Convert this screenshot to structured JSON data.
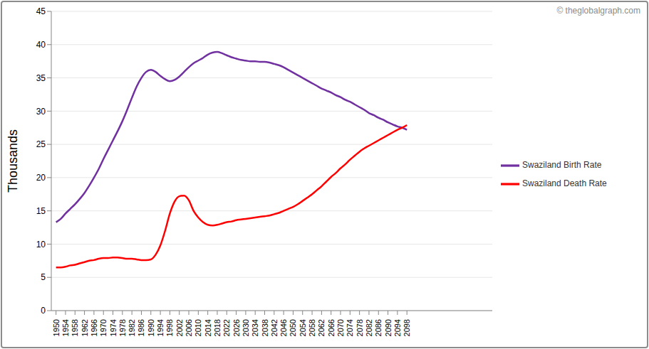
{
  "chart_data": {
    "type": "line",
    "y_label": "Thousands",
    "annotations": [
      "© theglobalgraph.com"
    ],
    "x": [
      1950,
      1952,
      1954,
      1956,
      1958,
      1960,
      1962,
      1964,
      1966,
      1968,
      1970,
      1972,
      1974,
      1976,
      1978,
      1980,
      1982,
      1984,
      1986,
      1988,
      1990,
      1992,
      1994,
      1996,
      1998,
      2000,
      2002,
      2004,
      2006,
      2008,
      2010,
      2012,
      2014,
      2016,
      2018,
      2020,
      2022,
      2024,
      2026,
      2028,
      2030,
      2032,
      2034,
      2036,
      2038,
      2040,
      2042,
      2044,
      2046,
      2048,
      2050,
      2052,
      2054,
      2056,
      2058,
      2060,
      2062,
      2064,
      2066,
      2068,
      2070,
      2072,
      2074,
      2076,
      2078,
      2080,
      2082,
      2084,
      2086,
      2088,
      2090,
      2092,
      2094,
      2096,
      2098
    ],
    "series": [
      {
        "name": "Swaziland Birth Rate",
        "color": "#7030a0",
        "values": [
          13.3,
          13.8,
          14.6,
          15.3,
          16.0,
          16.8,
          17.7,
          18.8,
          20.0,
          21.3,
          22.8,
          24.2,
          25.6,
          27.0,
          28.5,
          30.2,
          32.0,
          33.7,
          35.0,
          35.9,
          36.2,
          35.9,
          35.3,
          34.8,
          34.5,
          34.7,
          35.2,
          35.9,
          36.6,
          37.2,
          37.6,
          38.0,
          38.5,
          38.8,
          38.9,
          38.7,
          38.4,
          38.1,
          37.9,
          37.7,
          37.6,
          37.5,
          37.5,
          37.4,
          37.4,
          37.3,
          37.1,
          36.9,
          36.6,
          36.2,
          35.8,
          35.4,
          35.0,
          34.6,
          34.2,
          33.8,
          33.4,
          33.1,
          32.8,
          32.4,
          32.1,
          31.7,
          31.4,
          31.0,
          30.6,
          30.2,
          29.7,
          29.4,
          29.0,
          28.7,
          28.3,
          28.0,
          27.7,
          27.5,
          27.2
        ]
      },
      {
        "name": "Swaziland Death Rate",
        "color": "#ff0000",
        "values": [
          6.5,
          6.5,
          6.6,
          6.8,
          6.9,
          7.1,
          7.3,
          7.5,
          7.6,
          7.8,
          7.9,
          7.9,
          8.0,
          8.0,
          7.9,
          7.8,
          7.8,
          7.7,
          7.6,
          7.6,
          7.7,
          8.4,
          9.8,
          12.0,
          14.6,
          16.4,
          17.2,
          17.3,
          16.6,
          15.0,
          14.0,
          13.3,
          12.9,
          12.8,
          12.9,
          13.1,
          13.3,
          13.4,
          13.6,
          13.7,
          13.8,
          13.9,
          14.0,
          14.1,
          14.2,
          14.3,
          14.5,
          14.7,
          15.0,
          15.3,
          15.6,
          16.0,
          16.5,
          17.0,
          17.5,
          18.1,
          18.7,
          19.4,
          20.1,
          20.7,
          21.4,
          22.0,
          22.7,
          23.3,
          23.9,
          24.4,
          24.8,
          25.2,
          25.6,
          26.0,
          26.4,
          26.8,
          27.2,
          27.5,
          27.9
        ]
      }
    ],
    "xlim": [
      1948,
      2134
    ],
    "xticks": [
      1950,
      1954,
      1958,
      1962,
      1966,
      1970,
      1974,
      1978,
      1982,
      1986,
      1990,
      1994,
      1998,
      2002,
      2006,
      2010,
      2014,
      2018,
      2022,
      2026,
      2030,
      2034,
      2038,
      2042,
      2046,
      2050,
      2054,
      2058,
      2062,
      2066,
      2070,
      2074,
      2078,
      2082,
      2086,
      2090,
      2094,
      2098
    ],
    "ylim": [
      0,
      45
    ],
    "yticks": [
      0,
      5,
      10,
      15,
      20,
      25,
      30,
      35,
      40,
      45
    ],
    "grid": true,
    "legend": "right"
  }
}
